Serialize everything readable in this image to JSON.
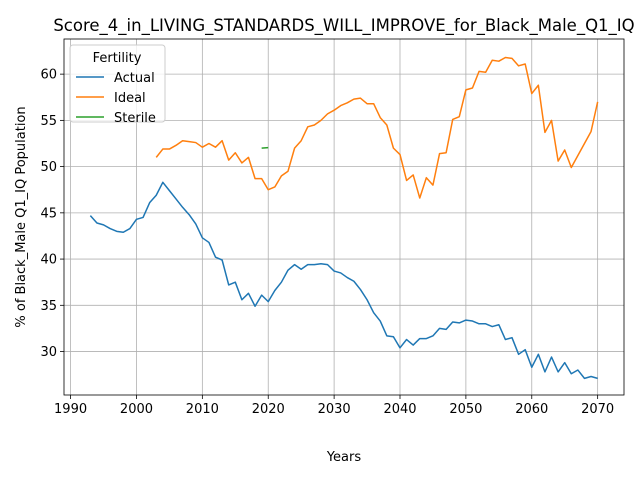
{
  "chart_data": {
    "type": "line",
    "title": "Score_4_in_LIVING_STANDARDS_WILL_IMPROVE_for_Black_Male_Q1_IQ",
    "xlabel": "Years",
    "ylabel": "% of Black_Male Q1_IQ Population",
    "xlim": [
      1989,
      2074
    ],
    "ylim": [
      25.3,
      63.8
    ],
    "xticks": [
      1990,
      2000,
      2010,
      2020,
      2030,
      2040,
      2050,
      2060,
      2070
    ],
    "yticks": [
      30,
      35,
      40,
      45,
      50,
      55,
      60
    ],
    "grid": true,
    "legend": {
      "title": "Fertility",
      "placement": "top-left"
    },
    "series": [
      {
        "name": "Actual",
        "color": "#1f77b4",
        "x": [
          1993,
          1994,
          1995,
          1996,
          1997,
          1998,
          1999,
          2000,
          2001,
          2002,
          2003,
          2004,
          2005,
          2006,
          2007,
          2008,
          2009,
          2010,
          2011,
          2012,
          2013,
          2014,
          2015,
          2016,
          2017,
          2018,
          2019,
          2020,
          2021,
          2022,
          2023,
          2024,
          2025,
          2026,
          2027,
          2028,
          2029,
          2030,
          2031,
          2032,
          2033,
          2034,
          2035,
          2036,
          2037,
          2038,
          2039,
          2040,
          2041,
          2042,
          2043,
          2044,
          2045,
          2046,
          2047,
          2048,
          2049,
          2050,
          2051,
          2052,
          2053,
          2054,
          2055,
          2056,
          2057,
          2058,
          2059,
          2060,
          2061,
          2062,
          2063,
          2064,
          2065,
          2066,
          2067,
          2068,
          2069,
          2070
        ],
        "y": [
          44.7,
          43.9,
          43.7,
          43.3,
          43.0,
          42.9,
          43.3,
          44.3,
          44.5,
          46.1,
          46.9,
          48.3,
          47.4,
          46.5,
          45.6,
          44.8,
          43.8,
          42.3,
          41.8,
          40.2,
          39.9,
          37.2,
          37.5,
          35.6,
          36.3,
          34.9,
          36.1,
          35.4,
          36.6,
          37.5,
          38.8,
          39.4,
          38.9,
          39.4,
          39.4,
          39.5,
          39.4,
          38.7,
          38.5,
          38.0,
          37.6,
          36.7,
          35.6,
          34.2,
          33.3,
          31.7,
          31.6,
          30.4,
          31.3,
          30.7,
          31.4,
          31.4,
          31.7,
          32.5,
          32.4,
          33.2,
          33.1,
          33.4,
          33.3,
          33.0,
          33.0,
          32.7,
          32.9,
          31.3,
          31.5,
          29.7,
          30.2,
          28.3,
          29.7,
          27.8,
          29.4,
          27.8,
          28.8,
          27.6,
          28.0,
          27.1,
          27.3,
          27.1
        ]
      },
      {
        "name": "Ideal",
        "color": "#ff7f0e",
        "x": [
          2003,
          2004,
          2005,
          2006,
          2007,
          2008,
          2009,
          2010,
          2011,
          2012,
          2013,
          2014,
          2015,
          2016,
          2017,
          2018,
          2019,
          2020,
          2021,
          2022,
          2023,
          2024,
          2025,
          2026,
          2027,
          2028,
          2029,
          2030,
          2031,
          2032,
          2033,
          2034,
          2035,
          2036,
          2037,
          2038,
          2039,
          2040,
          2041,
          2042,
          2043,
          2044,
          2045,
          2046,
          2047,
          2048,
          2049,
          2050,
          2051,
          2052,
          2053,
          2054,
          2055,
          2056,
          2057,
          2058,
          2059,
          2060,
          2061,
          2062,
          2063,
          2064,
          2065,
          2066,
          2067,
          2068,
          2069,
          2070
        ],
        "y": [
          51.0,
          51.9,
          51.9,
          52.3,
          52.8,
          52.7,
          52.6,
          52.1,
          52.5,
          52.1,
          52.8,
          50.7,
          51.5,
          50.4,
          51.0,
          48.7,
          48.7,
          47.5,
          47.8,
          49.0,
          49.5,
          52.0,
          52.8,
          54.3,
          54.5,
          55.0,
          55.7,
          56.1,
          56.6,
          56.9,
          57.3,
          57.4,
          56.8,
          56.8,
          55.3,
          54.5,
          52.0,
          51.3,
          48.5,
          49.1,
          46.6,
          48.8,
          48.0,
          51.4,
          51.5,
          55.1,
          55.4,
          58.3,
          58.5,
          60.3,
          60.2,
          61.5,
          61.4,
          61.8,
          61.7,
          60.9,
          61.1,
          57.9,
          58.8,
          53.7,
          55.0,
          50.6,
          51.8,
          49.9,
          51.2,
          52.5,
          53.8,
          57.0
        ]
      },
      {
        "name": "Sterile",
        "color": "#2ca02c",
        "x": [
          2019,
          2020
        ],
        "y": [
          52.0,
          52.05
        ]
      }
    ]
  }
}
